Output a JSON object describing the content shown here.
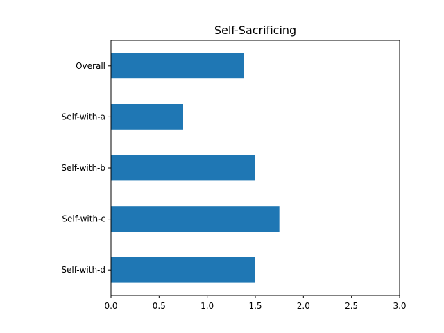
{
  "chart_data": {
    "type": "bar",
    "orientation": "horizontal",
    "title": "Self-Sacrificing",
    "xlabel": "",
    "ylabel": "",
    "categories": [
      "Overall",
      "Self-with-a",
      "Self-with-b",
      "Self-with-c",
      "Self-with-d"
    ],
    "values": [
      1.38,
      0.75,
      1.5,
      1.75,
      1.5
    ],
    "xlim": [
      0,
      3
    ],
    "xticks": [
      "0.0",
      "0.5",
      "1.0",
      "1.5",
      "2.0",
      "2.5",
      "3.0"
    ],
    "grid": false,
    "bar_color": "#1f77b4"
  }
}
